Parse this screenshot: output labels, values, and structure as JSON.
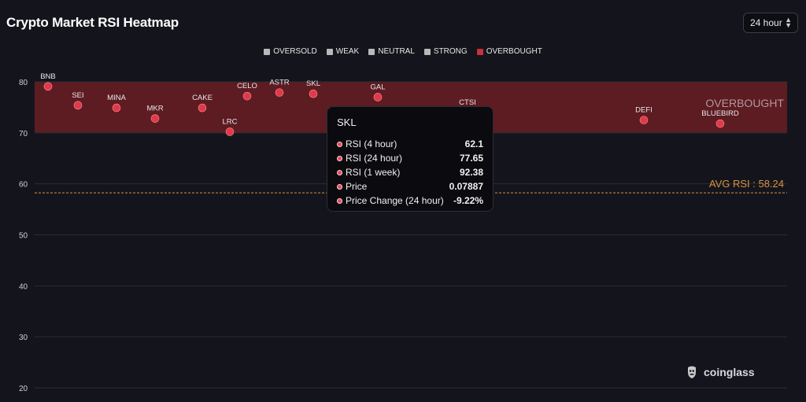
{
  "header": {
    "title": "Crypto Market RSI Heatmap",
    "period_select": "24 hour"
  },
  "legend": [
    {
      "label": "OVERSOLD",
      "color": "#b9b9b9"
    },
    {
      "label": "WEAK",
      "color": "#b9b9b9"
    },
    {
      "label": "NEUTRAL",
      "color": "#b9b9b9"
    },
    {
      "label": "STRONG",
      "color": "#b9b9b9"
    },
    {
      "label": "OVERBOUGHT",
      "color": "#c8303a"
    }
  ],
  "tooltip": {
    "title": "SKL",
    "rows": [
      {
        "label": "RSI (4 hour)",
        "value": "62.1"
      },
      {
        "label": "RSI (24 hour)",
        "value": "77.65"
      },
      {
        "label": "RSI (1 week)",
        "value": "92.38"
      },
      {
        "label": "Price",
        "value": "0.07887"
      },
      {
        "label": "Price Change (24 hour)",
        "value": "-9.22%"
      }
    ]
  },
  "brand": {
    "name": "coinglass"
  },
  "chart_data": {
    "type": "scatter",
    "ylim": [
      20,
      80
    ],
    "yticks": [
      20,
      30,
      40,
      50,
      60,
      70,
      80
    ],
    "grid": true,
    "zone": {
      "label": "OVERBOUGHT",
      "from": 70,
      "to": 80,
      "color": "#7a1f26"
    },
    "avg_line": {
      "label": "AVG RSI : 58.24",
      "value": 58.24,
      "color": "#d9923f"
    },
    "points": [
      {
        "name": "BNB",
        "value": 79.1
      },
      {
        "name": "SEI",
        "value": 75.4
      },
      {
        "name": "MINA",
        "value": 74.9
      },
      {
        "name": "MKR",
        "value": 72.8
      },
      {
        "name": "CAKE",
        "value": 74.9
      },
      {
        "name": "LRC",
        "value": 70.2
      },
      {
        "name": "CELO",
        "value": 77.2
      },
      {
        "name": "ASTR",
        "value": 77.9
      },
      {
        "name": "SKL",
        "value": 77.65
      },
      {
        "name": "GAL",
        "value": 77.0
      },
      {
        "name": "CTSI",
        "value": 74.0
      },
      {
        "name": "DEFI",
        "value": 72.5
      },
      {
        "name": "BLUEBIRD",
        "value": 71.8
      }
    ],
    "point_color": "#e03a4a"
  }
}
